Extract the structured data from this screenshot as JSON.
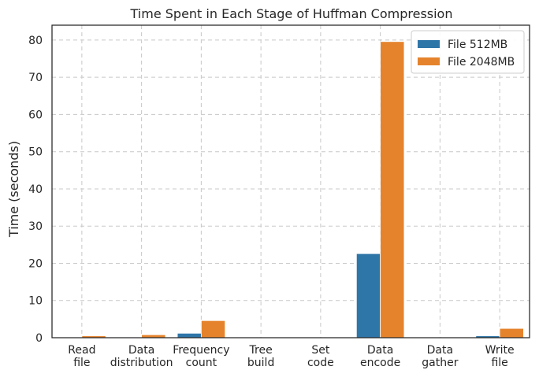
{
  "chart_data": {
    "type": "bar",
    "title": "Time Spent in Each Stage of Huffman Compression",
    "xlabel": "",
    "ylabel": "Time (seconds)",
    "ylim": [
      0,
      84
    ],
    "yticks": [
      0,
      10,
      20,
      30,
      40,
      50,
      60,
      70,
      80
    ],
    "grid": true,
    "legend_position": "top-right",
    "categories": [
      [
        "Read",
        "file"
      ],
      [
        "Data",
        "distribution"
      ],
      [
        "Frequency",
        "count"
      ],
      [
        "Tree",
        "build"
      ],
      [
        "Set",
        "code"
      ],
      [
        "Data",
        "encode"
      ],
      [
        "Data",
        "gather"
      ],
      [
        "Write",
        "file"
      ]
    ],
    "series": [
      {
        "name": "File 512MB",
        "color": "#2e75a8",
        "values": [
          0.1,
          0.1,
          1.2,
          0.0,
          0.0,
          22.6,
          0.0,
          0.5
        ]
      },
      {
        "name": "File 2048MB",
        "color": "#e5832c",
        "values": [
          0.5,
          0.8,
          4.6,
          0.0,
          0.0,
          79.6,
          0.0,
          2.5
        ]
      }
    ]
  }
}
